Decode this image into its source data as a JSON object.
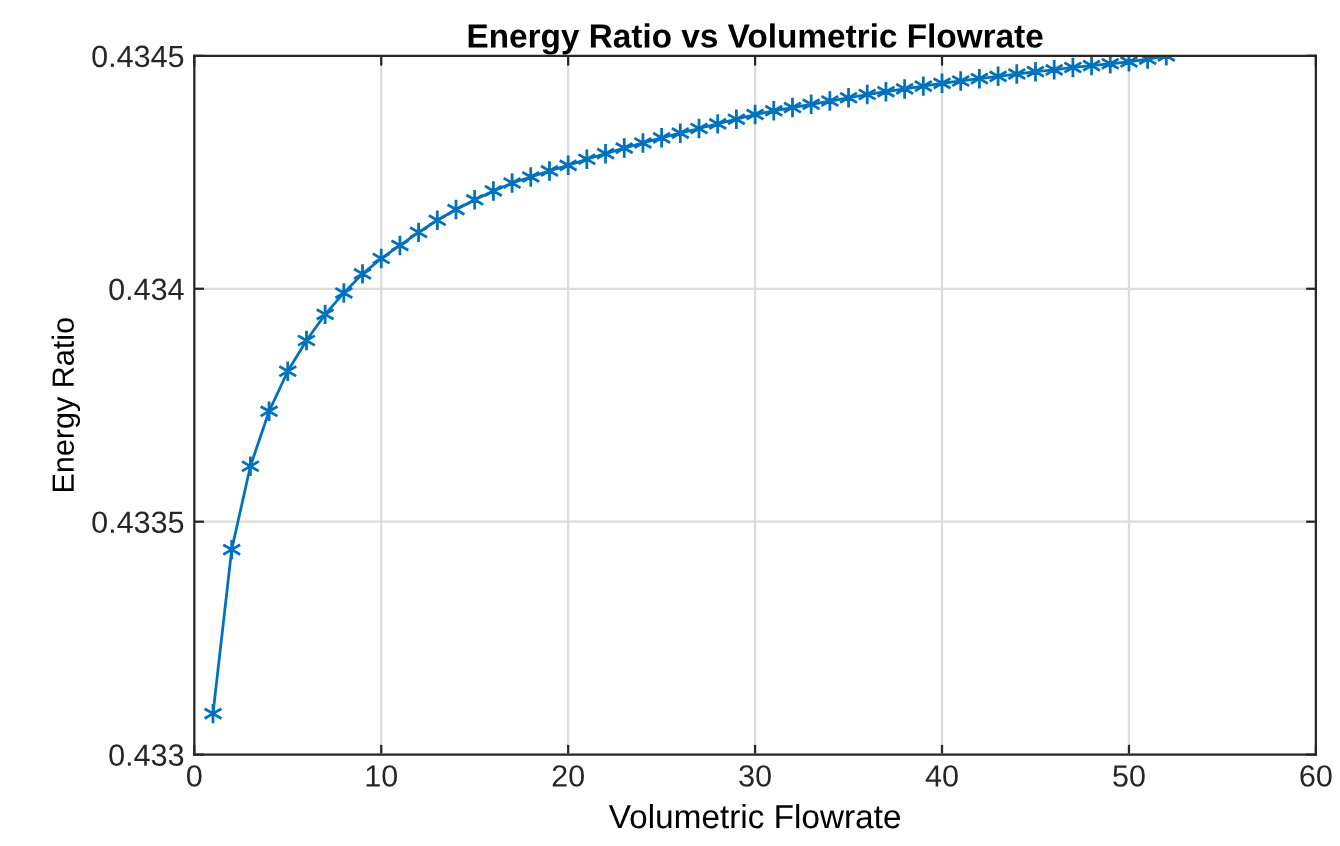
{
  "chart_data": {
    "type": "line",
    "title": "Energy Ratio vs Volumetric Flowrate",
    "xlabel": "Volumetric Flowrate",
    "ylabel": "Energy Ratio",
    "x": [
      1,
      2,
      3,
      4,
      5,
      6,
      7,
      8,
      9,
      10,
      11,
      12,
      13,
      14,
      15,
      16,
      17,
      18,
      19,
      20,
      21,
      22,
      23,
      24,
      25,
      26,
      27,
      28,
      29,
      30,
      31,
      32,
      33,
      34,
      35,
      36,
      37,
      38,
      39,
      40,
      41,
      42,
      43,
      44,
      45,
      46,
      47,
      48,
      49,
      50,
      51,
      52
    ],
    "series": [
      {
        "color": "#0072bd",
        "values": [
          0.433088,
          0.43344,
          0.433619,
          0.433737,
          0.433823,
          0.433889,
          0.433945,
          0.433991,
          0.434032,
          0.434065,
          0.434093,
          0.434121,
          0.434147,
          0.43417,
          0.434191,
          0.43421,
          0.434227,
          0.43424,
          0.434253,
          0.434265,
          0.434278,
          0.43429,
          0.434302,
          0.434313,
          0.434324,
          0.434334,
          0.434344,
          0.434354,
          0.434364,
          0.434374,
          0.434382,
          0.434389,
          0.434396,
          0.434403,
          0.43441,
          0.434417,
          0.434423,
          0.434429,
          0.434435,
          0.434441,
          0.434446,
          0.434451,
          0.434456,
          0.434461,
          0.434466,
          0.43447,
          0.434475,
          0.434479,
          0.434483,
          0.434487,
          0.434493,
          0.4345
        ]
      }
    ],
    "xlim": [
      0,
      60
    ],
    "xticks": [
      0,
      10,
      20,
      30,
      40,
      50,
      60
    ],
    "ylim": [
      0.433,
      0.4345
    ],
    "yticks": [
      {
        "value": 0.433,
        "label": "0.433"
      },
      {
        "value": 0.4335,
        "label": "0.4335"
      },
      {
        "value": 0.434,
        "label": "0.434"
      },
      {
        "value": 0.4345,
        "label": "0.4345"
      }
    ],
    "grid": true,
    "marker": "cross",
    "line_style": "solid",
    "legend": false
  }
}
